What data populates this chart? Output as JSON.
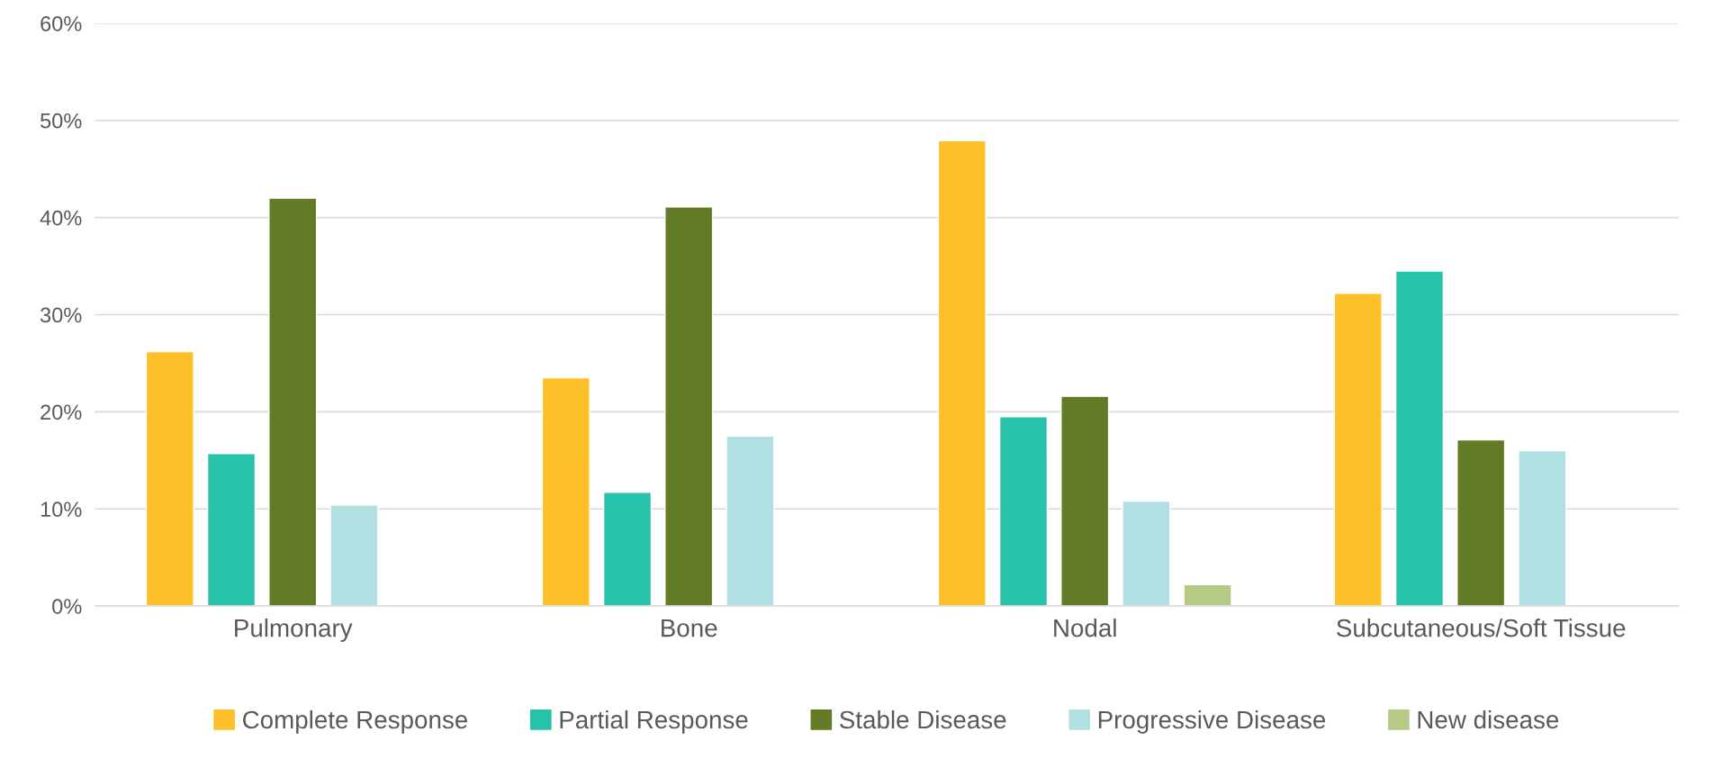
{
  "chart_data": {
    "type": "bar",
    "categories": [
      "Pulmonary",
      "Bone",
      "Nodal",
      "Subcutaneous/Soft Tissue"
    ],
    "series": [
      {
        "name": "Complete Response",
        "color": "#fec12a",
        "values": [
          26.2,
          23.5,
          47.9,
          32.2
        ]
      },
      {
        "name": "Partial Response",
        "color": "#26c2aa",
        "values": [
          15.7,
          11.7,
          19.5,
          34.5
        ]
      },
      {
        "name": "Stable Disease",
        "color": "#637b27",
        "values": [
          42.0,
          41.1,
          21.6,
          17.1
        ]
      },
      {
        "name": "Progressive Disease",
        "color": "#b0e0e2",
        "values": [
          10.4,
          17.5,
          10.8,
          16.0
        ]
      },
      {
        "name": "New disease",
        "color": "#b6c985",
        "values": [
          null,
          null,
          2.2,
          null
        ]
      }
    ],
    "ylim": [
      0,
      60
    ],
    "yticks": [
      {
        "value": 0,
        "label": "0%"
      },
      {
        "value": 10,
        "label": "10%"
      },
      {
        "value": 20,
        "label": "20%"
      },
      {
        "value": 30,
        "label": "30%"
      },
      {
        "value": 40,
        "label": "40%"
      },
      {
        "value": 50,
        "label": "50%"
      },
      {
        "value": 60,
        "label": "60%"
      }
    ],
    "grid": "y",
    "legend": "bottom"
  }
}
